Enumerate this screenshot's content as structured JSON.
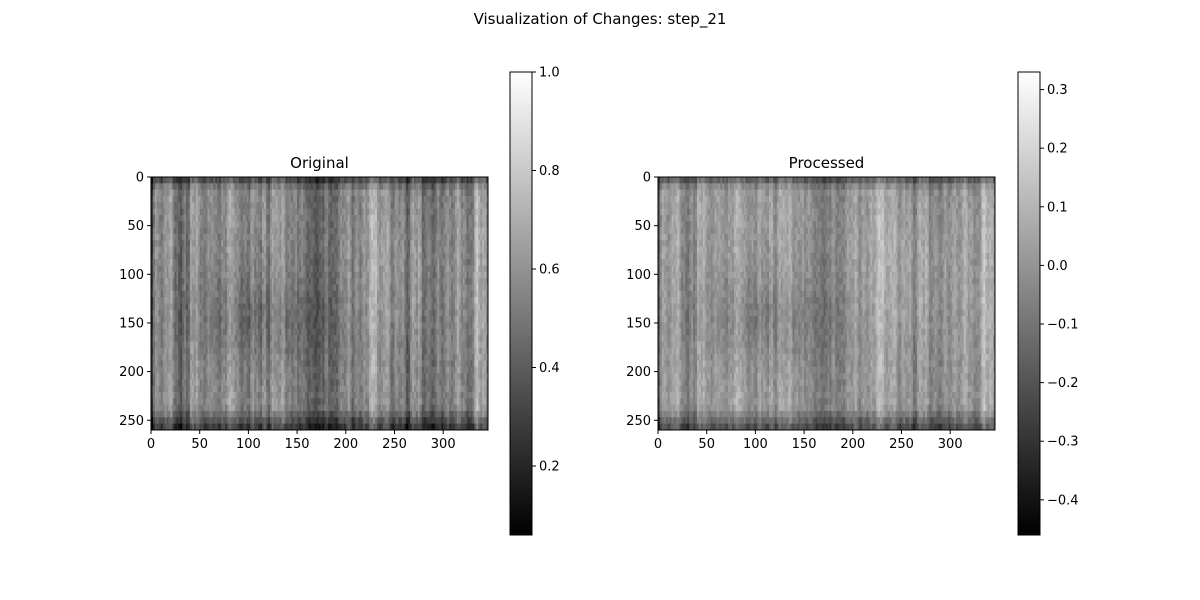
{
  "figure": {
    "title": "Visualization of Changes: step_21"
  },
  "chart_data": [
    {
      "type": "heatmap",
      "title": "Original",
      "colormap": "gray",
      "image_size": [
        346,
        260
      ],
      "xlim": [
        0,
        346
      ],
      "ylim": [
        260,
        0
      ],
      "xticks": [
        0,
        50,
        100,
        150,
        200,
        250,
        300
      ],
      "yticks": [
        0,
        50,
        100,
        150,
        200,
        250
      ],
      "colorbar": {
        "range": [
          0.06,
          1.0
        ],
        "ticks": [
          0.2,
          0.4,
          0.6,
          0.8,
          1.0
        ],
        "tick_labels": [
          "0.2",
          "0.4",
          "0.6",
          "0.8",
          "1.0"
        ]
      },
      "mean_value": 0.45,
      "dark_region_center": [
        120,
        145
      ]
    },
    {
      "type": "heatmap",
      "title": "Processed",
      "colormap": "gray",
      "image_size": [
        346,
        260
      ],
      "xlim": [
        0,
        346
      ],
      "ylim": [
        260,
        0
      ],
      "xticks": [
        0,
        50,
        100,
        150,
        200,
        250,
        300
      ],
      "yticks": [
        0,
        50,
        100,
        150,
        200,
        250
      ],
      "colorbar": {
        "range": [
          -0.46,
          0.33
        ],
        "ticks": [
          -0.4,
          -0.3,
          -0.2,
          -0.1,
          0.0,
          0.1,
          0.2,
          0.3
        ],
        "tick_labels": [
          "−0.4",
          "−0.3",
          "−0.2",
          "−0.1",
          "0.0",
          "0.1",
          "0.2",
          "0.3"
        ]
      },
      "mean_value": 0.0,
      "dark_region_center": [
        120,
        145
      ]
    }
  ]
}
